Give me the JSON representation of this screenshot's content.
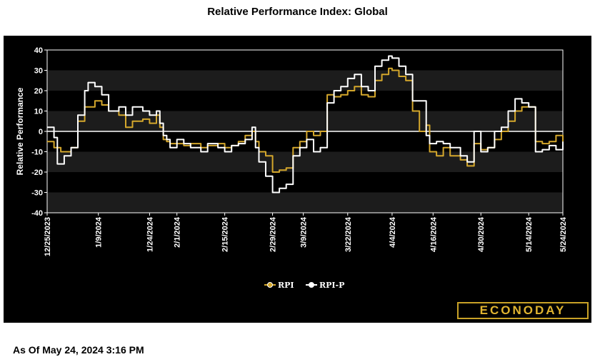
{
  "title": "Relative Performance Index: Global",
  "as_of": "As Of May 24, 2024 3:16 PM",
  "logo_text": "ECONODAY",
  "colors": {
    "background": "#000000",
    "rpi": "#d4a72c",
    "rpi_p": "#ffffff",
    "band": "#1c1c1c"
  },
  "chart_data": {
    "type": "line",
    "title": "Relative Performance Index: Global",
    "xlabel": "",
    "ylabel": "Relative Performance",
    "ylim": [
      -40,
      40
    ],
    "yticks": [
      -40,
      -30,
      -20,
      -10,
      0,
      10,
      20,
      30,
      40
    ],
    "x_start": "12/25/2023",
    "x_end": "5/24/2024",
    "xticks": [
      "12/25/2023",
      "1/9/2024",
      "1/24/2024",
      "2/1/2024",
      "2/15/2024",
      "2/29/2024",
      "3/9/2024",
      "3/22/2024",
      "4/4/2024",
      "4/16/2024",
      "4/30/2024",
      "5/14/2024",
      "5/24/2024"
    ],
    "legend_position": "bottom",
    "grid": false,
    "series": [
      {
        "name": "RPI",
        "color": "#d4a72c",
        "points": [
          [
            "12/25/2023",
            -5
          ],
          [
            "12/27/2023",
            -8
          ],
          [
            "12/29/2023",
            -10
          ],
          [
            "1/1/2024",
            -8
          ],
          [
            "1/3/2024",
            5
          ],
          [
            "1/5/2024",
            12
          ],
          [
            "1/8/2024",
            15
          ],
          [
            "1/10/2024",
            13
          ],
          [
            "1/12/2024",
            10
          ],
          [
            "1/15/2024",
            8
          ],
          [
            "1/17/2024",
            2
          ],
          [
            "1/19/2024",
            5
          ],
          [
            "1/22/2024",
            6
          ],
          [
            "1/24/2024",
            4
          ],
          [
            "1/26/2024",
            8
          ],
          [
            "1/27/2024",
            2
          ],
          [
            "1/28/2024",
            -4
          ],
          [
            "1/29/2024",
            -5
          ],
          [
            "1/30/2024",
            -6
          ],
          [
            "2/1/2024",
            -6
          ],
          [
            "2/3/2024",
            -7
          ],
          [
            "2/5/2024",
            -6
          ],
          [
            "2/8/2024",
            -8
          ],
          [
            "2/10/2024",
            -7
          ],
          [
            "2/13/2024",
            -6
          ],
          [
            "2/15/2024",
            -8
          ],
          [
            "2/17/2024",
            -7
          ],
          [
            "2/19/2024",
            -5
          ],
          [
            "2/21/2024",
            -2
          ],
          [
            "2/23/2024",
            0
          ],
          [
            "2/24/2024",
            -5
          ],
          [
            "2/25/2024",
            -10
          ],
          [
            "2/27/2024",
            -12
          ],
          [
            "2/29/2024",
            -20
          ],
          [
            "3/2/2024",
            -19
          ],
          [
            "3/4/2024",
            -18
          ],
          [
            "3/6/2024",
            -8
          ],
          [
            "3/8/2024",
            -5
          ],
          [
            "3/10/2024",
            0
          ],
          [
            "3/12/2024",
            -2
          ],
          [
            "3/14/2024",
            0
          ],
          [
            "3/16/2024",
            18
          ],
          [
            "3/18/2024",
            17
          ],
          [
            "3/20/2024",
            18
          ],
          [
            "3/22/2024",
            20
          ],
          [
            "3/24/2024",
            22
          ],
          [
            "3/26/2024",
            18
          ],
          [
            "3/28/2024",
            17
          ],
          [
            "3/30/2024",
            25
          ],
          [
            "4/1/2024",
            28
          ],
          [
            "4/3/2024",
            31
          ],
          [
            "4/4/2024",
            30
          ],
          [
            "4/6/2024",
            27
          ],
          [
            "4/8/2024",
            25
          ],
          [
            "4/10/2024",
            10
          ],
          [
            "4/12/2024",
            0
          ],
          [
            "4/14/2024",
            3
          ],
          [
            "4/15/2024",
            -10
          ],
          [
            "4/17/2024",
            -12
          ],
          [
            "4/19/2024",
            -8
          ],
          [
            "4/21/2024",
            -12
          ],
          [
            "4/24/2024",
            -14
          ],
          [
            "4/26/2024",
            -17
          ],
          [
            "4/28/2024",
            -6
          ],
          [
            "4/30/2024",
            -9
          ],
          [
            "5/2/2024",
            -8
          ],
          [
            "5/4/2024",
            -4
          ],
          [
            "5/6/2024",
            0
          ],
          [
            "5/8/2024",
            5
          ],
          [
            "5/10/2024",
            10
          ],
          [
            "5/12/2024",
            12
          ],
          [
            "5/14/2024",
            12
          ],
          [
            "5/16/2024",
            -5
          ],
          [
            "5/18/2024",
            -6
          ],
          [
            "5/20/2024",
            -5
          ],
          [
            "5/22/2024",
            -2
          ],
          [
            "5/24/2024",
            -5
          ]
        ]
      },
      {
        "name": "RPI-P",
        "color": "#ffffff",
        "points": [
          [
            "12/25/2023",
            2
          ],
          [
            "12/27/2023",
            -3
          ],
          [
            "12/28/2023",
            -16
          ],
          [
            "12/30/2023",
            -12
          ],
          [
            "1/1/2024",
            -8
          ],
          [
            "1/3/2024",
            8
          ],
          [
            "1/5/2024",
            20
          ],
          [
            "1/6/2024",
            24
          ],
          [
            "1/8/2024",
            22
          ],
          [
            "1/10/2024",
            18
          ],
          [
            "1/12/2024",
            10
          ],
          [
            "1/15/2024",
            12
          ],
          [
            "1/17/2024",
            8
          ],
          [
            "1/19/2024",
            12
          ],
          [
            "1/22/2024",
            10
          ],
          [
            "1/24/2024",
            8
          ],
          [
            "1/26/2024",
            10
          ],
          [
            "1/27/2024",
            4
          ],
          [
            "1/28/2024",
            -2
          ],
          [
            "1/29/2024",
            -4
          ],
          [
            "1/30/2024",
            -8
          ],
          [
            "2/1/2024",
            -4
          ],
          [
            "2/3/2024",
            -6
          ],
          [
            "2/5/2024",
            -8
          ],
          [
            "2/8/2024",
            -10
          ],
          [
            "2/10/2024",
            -6
          ],
          [
            "2/13/2024",
            -8
          ],
          [
            "2/15/2024",
            -10
          ],
          [
            "2/17/2024",
            -7
          ],
          [
            "2/19/2024",
            -6
          ],
          [
            "2/21/2024",
            -4
          ],
          [
            "2/23/2024",
            2
          ],
          [
            "2/24/2024",
            -8
          ],
          [
            "2/25/2024",
            -15
          ],
          [
            "2/27/2024",
            -22
          ],
          [
            "2/29/2024",
            -30
          ],
          [
            "3/2/2024",
            -28
          ],
          [
            "3/4/2024",
            -26
          ],
          [
            "3/6/2024",
            -12
          ],
          [
            "3/8/2024",
            -8
          ],
          [
            "3/10/2024",
            -4
          ],
          [
            "3/12/2024",
            -10
          ],
          [
            "3/14/2024",
            -8
          ],
          [
            "3/16/2024",
            14
          ],
          [
            "3/18/2024",
            20
          ],
          [
            "3/20/2024",
            22
          ],
          [
            "3/22/2024",
            26
          ],
          [
            "3/24/2024",
            28
          ],
          [
            "3/26/2024",
            22
          ],
          [
            "3/28/2024",
            20
          ],
          [
            "3/30/2024",
            32
          ],
          [
            "4/1/2024",
            35
          ],
          [
            "4/3/2024",
            37
          ],
          [
            "4/4/2024",
            36
          ],
          [
            "4/6/2024",
            32
          ],
          [
            "4/8/2024",
            28
          ],
          [
            "4/10/2024",
            15
          ],
          [
            "4/12/2024",
            15
          ],
          [
            "4/14/2024",
            -2
          ],
          [
            "4/15/2024",
            -6
          ],
          [
            "4/17/2024",
            -5
          ],
          [
            "4/19/2024",
            -6
          ],
          [
            "4/21/2024",
            -8
          ],
          [
            "4/24/2024",
            -12
          ],
          [
            "4/26/2024",
            -15
          ],
          [
            "4/28/2024",
            0
          ],
          [
            "4/30/2024",
            -10
          ],
          [
            "5/2/2024",
            -8
          ],
          [
            "5/4/2024",
            0
          ],
          [
            "5/6/2024",
            2
          ],
          [
            "5/8/2024",
            10
          ],
          [
            "5/10/2024",
            16
          ],
          [
            "5/12/2024",
            14
          ],
          [
            "5/14/2024",
            12
          ],
          [
            "5/16/2024",
            -10
          ],
          [
            "5/18/2024",
            -9
          ],
          [
            "5/20/2024",
            -7
          ],
          [
            "5/22/2024",
            -9
          ],
          [
            "5/24/2024",
            -5
          ]
        ]
      }
    ]
  }
}
